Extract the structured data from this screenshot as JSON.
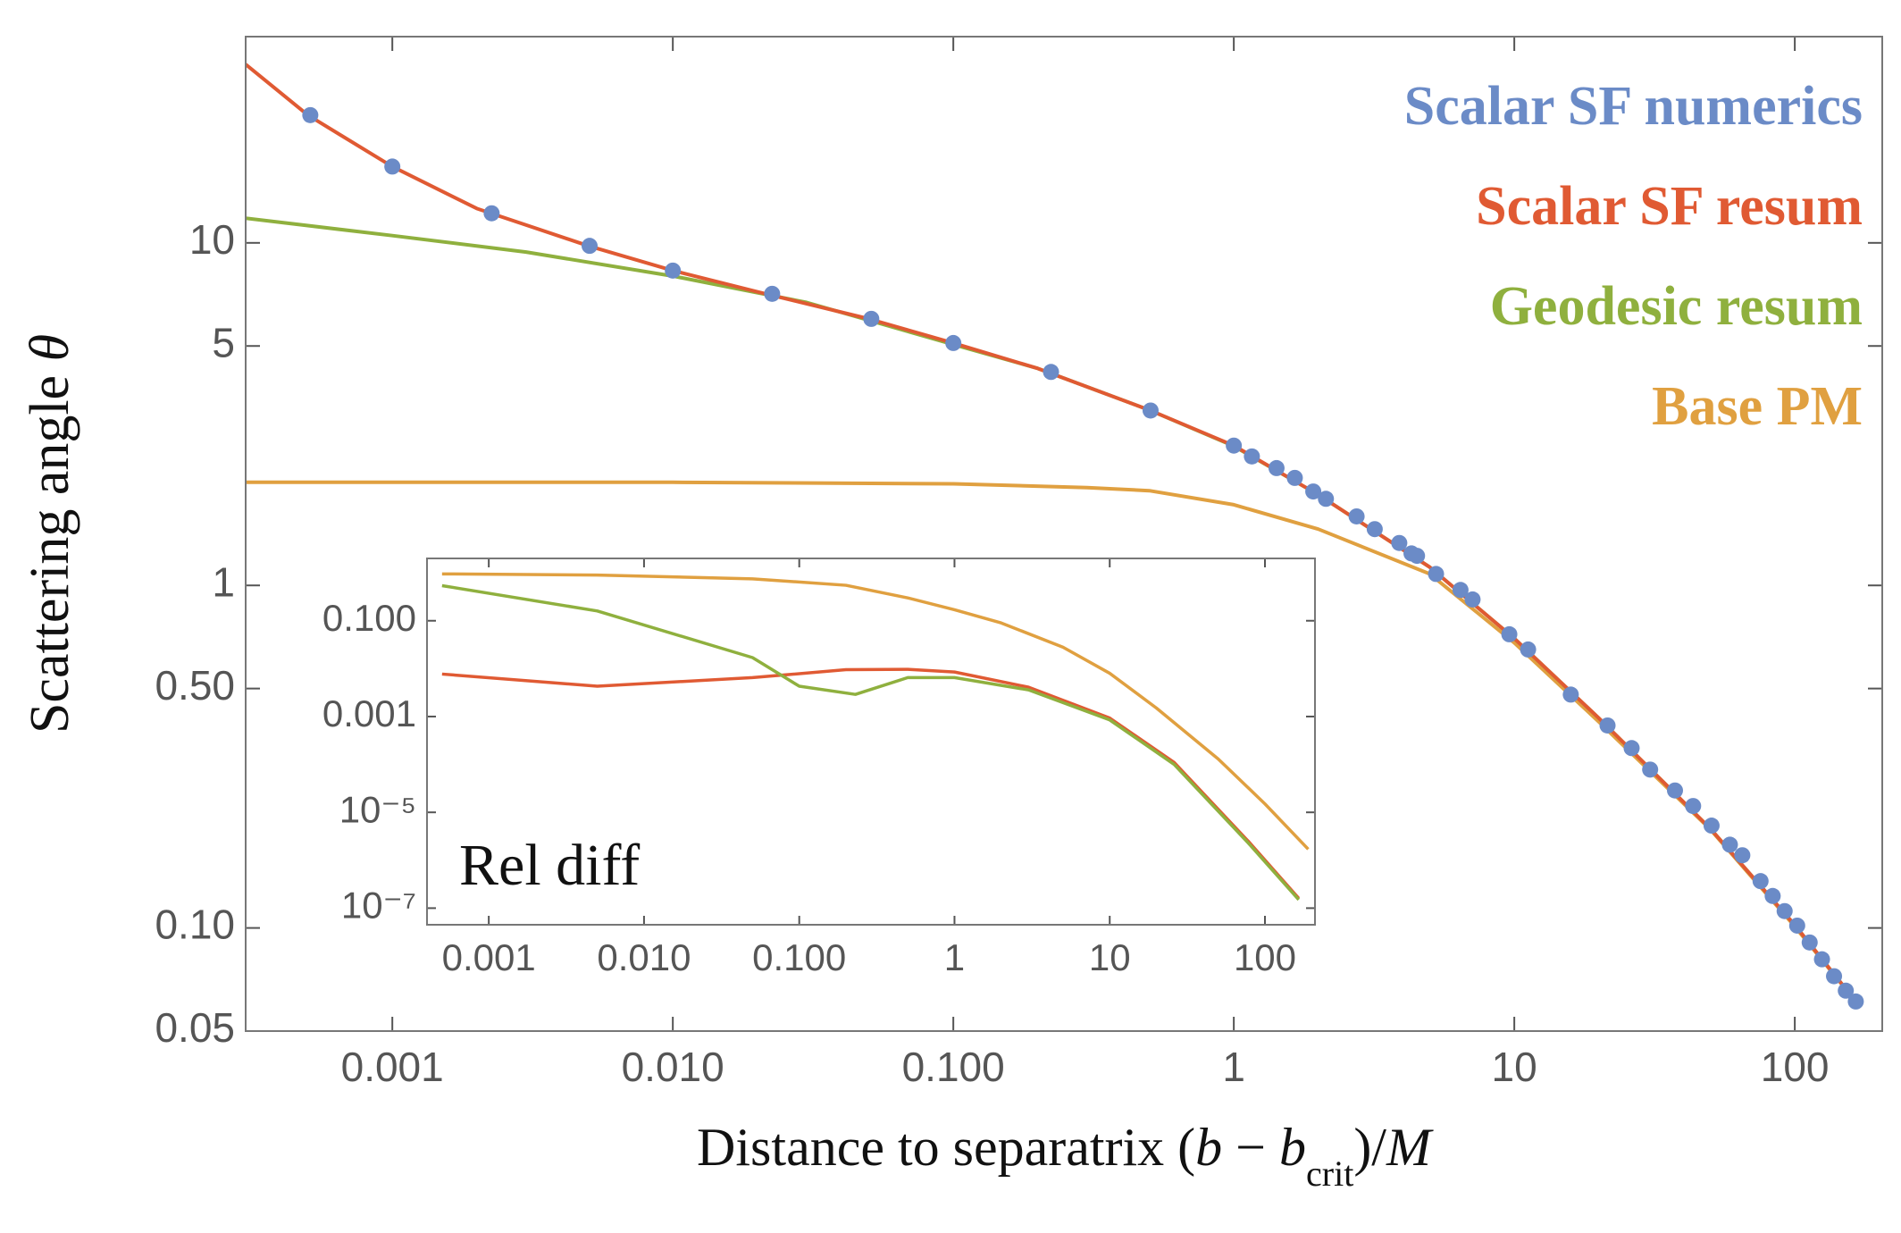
{
  "chart_data": [
    {
      "type": "line",
      "x_label": [
        "Distance to separatrix (",
        "b",
        " − ",
        "b",
        "crit",
        ")/",
        "M"
      ],
      "y_label": [
        "Scattering angle ",
        "θ"
      ],
      "xscale": "log",
      "yscale": "log",
      "xlim": [
        0.0003,
        205
      ],
      "ylim": [
        0.05,
        40
      ],
      "xticks": [
        0.001,
        {
          "value": 0.01,
          "label": "0.010"
        },
        {
          "value": 0.1,
          "label": "0.100"
        },
        1,
        10,
        100
      ],
      "yticks": [
        0.05,
        {
          "value": 0.1,
          "label": "0.10"
        },
        {
          "value": 0.5,
          "label": "0.50"
        },
        1,
        5,
        10
      ],
      "legend": "upper right",
      "series": [
        {
          "name": "Scalar SF numerics",
          "type": "scatter",
          "color": "#6b8bc7",
          "x": [
            0.00051,
            0.001,
            0.00226,
            0.00505,
            0.01,
            0.0226,
            0.051,
            0.1,
            0.223,
            0.505,
            1,
            1.16,
            1.42,
            1.65,
            1.92,
            2.13,
            2.74,
            3.18,
            3.89,
            4.3,
            4.5,
            5.26,
            6.43,
            7.1,
            9.6,
            11.2,
            15.9,
            21.5,
            26.2,
            30.5,
            37.4,
            43.4,
            50.5,
            58.7,
            65,
            75.5,
            83.4,
            92,
            102,
            113,
            125,
            138,
            152,
            165
          ],
          "values": [
            23.6,
            16.7,
            12.2,
            9.8,
            8.3,
            7.1,
            6.0,
            5.1,
            4.2,
            3.24,
            2.56,
            2.38,
            2.2,
            2.06,
            1.88,
            1.79,
            1.59,
            1.46,
            1.33,
            1.24,
            1.22,
            1.08,
            0.97,
            0.91,
            0.72,
            0.65,
            0.48,
            0.39,
            0.335,
            0.29,
            0.252,
            0.227,
            0.199,
            0.175,
            0.163,
            0.137,
            0.124,
            0.112,
            0.1016,
            0.0907,
            0.081,
            0.0723,
            0.0656,
            0.061
          ]
        },
        {
          "name": "Scalar SF resum",
          "type": "line",
          "color": "#e05a33",
          "x": [
            0.0003,
            0.0005,
            0.001,
            0.002,
            0.005,
            0.01,
            0.02,
            0.05,
            0.1,
            0.2,
            0.5,
            1,
            2,
            5,
            10,
            20,
            50,
            100,
            165
          ],
          "values": [
            33.2,
            23.6,
            16.7,
            12.6,
            9.8,
            8.3,
            7.2,
            6.0,
            5.1,
            4.3,
            3.25,
            2.56,
            1.84,
            1.13,
            0.7,
            0.41,
            0.195,
            0.102,
            0.061
          ]
        },
        {
          "name": "Geodesic resum",
          "type": "line",
          "color": "#8fb03e",
          "x": [
            0.0003,
            0.001,
            0.003,
            0.01,
            0.03,
            0.1,
            0.2,
            0.5,
            1,
            2,
            5,
            10,
            20,
            50,
            100,
            165
          ],
          "values": [
            11.8,
            10.5,
            9.4,
            8.0,
            6.7,
            5.05,
            4.3,
            3.25,
            2.55,
            1.84,
            1.13,
            0.7,
            0.41,
            0.195,
            0.102,
            0.061
          ]
        },
        {
          "name": "Base PM",
          "type": "line",
          "color": "#e0a040",
          "x": [
            0.0003,
            0.01,
            0.1,
            0.3,
            0.5,
            1,
            2,
            5,
            10,
            20,
            50,
            100,
            165
          ],
          "values": [
            2.0,
            2.0,
            1.98,
            1.93,
            1.89,
            1.72,
            1.46,
            1.08,
            0.68,
            0.4,
            0.194,
            0.101,
            0.061
          ]
        }
      ]
    },
    {
      "type": "line",
      "annotation": "Rel diff",
      "xscale": "log",
      "yscale": "log",
      "xlim": [
        0.0004,
        210
      ],
      "ylim": [
        4.5e-08,
        2
      ],
      "xticks": [
        0.001,
        {
          "value": 0.01,
          "label": "0.010"
        },
        {
          "value": 0.1,
          "label": "0.100"
        },
        1,
        10,
        100
      ],
      "yticks": [
        {
          "value": 1e-07,
          "label": "10⁻⁷"
        },
        {
          "value": 1e-05,
          "label": "10⁻⁵"
        },
        0.001,
        {
          "value": 0.1,
          "label": "0.100"
        }
      ],
      "series": [
        {
          "type": "line",
          "color": "#e0a040",
          "x": [
            0.0005,
            0.005,
            0.05,
            0.2,
            0.5,
            1,
            2,
            5,
            10,
            20,
            50,
            100,
            190
          ],
          "values": [
            0.95,
            0.9,
            0.75,
            0.55,
            0.3,
            0.17,
            0.09,
            0.028,
            0.008,
            0.0015,
            0.00013,
            1.5e-05,
            1.7e-06
          ]
        },
        {
          "type": "line",
          "color": "#8fb03e",
          "x": [
            0.0005,
            0.005,
            0.05,
            0.1,
            0.23,
            0.5,
            1,
            3,
            10,
            26,
            78,
            165
          ],
          "values": [
            0.54,
            0.16,
            0.017,
            0.0043,
            0.0029,
            0.0065,
            0.0065,
            0.0036,
            0.00085,
            0.0001,
            2.3e-06,
            1.5e-07
          ]
        },
        {
          "type": "line",
          "color": "#e05a33",
          "x": [
            0.0005,
            0.005,
            0.05,
            0.2,
            0.5,
            1,
            3,
            10,
            26,
            78,
            165
          ],
          "values": [
            0.0077,
            0.0043,
            0.0065,
            0.0095,
            0.0097,
            0.0085,
            0.0041,
            0.00093,
            0.00011,
            2.5e-06,
            1.6e-07
          ]
        }
      ]
    }
  ]
}
